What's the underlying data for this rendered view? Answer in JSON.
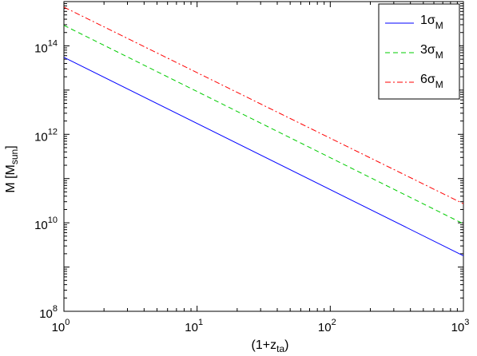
{
  "chart_data": {
    "type": "line",
    "x_scale": "log",
    "y_scale": "log",
    "xlim": [
      1,
      1000
    ],
    "ylim": [
      100000000.0,
      1000000000000000.0
    ],
    "xlabel": {
      "base": "(1+z",
      "sub": "ta",
      "end": ")"
    },
    "ylabel": {
      "base": "M [M",
      "sub": "sun",
      "end": "]"
    },
    "x_ticks": [
      {
        "value": 1,
        "base": "10",
        "exp": "0"
      },
      {
        "value": 10,
        "base": "10",
        "exp": "1"
      },
      {
        "value": 100,
        "base": "10",
        "exp": "2"
      },
      {
        "value": 1000,
        "base": "10",
        "exp": "3"
      }
    ],
    "y_ticks": [
      {
        "value": 100000000.0,
        "base": "10",
        "exp": "8"
      },
      {
        "value": 10000000000.0,
        "base": "10",
        "exp": "10"
      },
      {
        "value": 1000000000000.0,
        "base": "10",
        "exp": "12"
      },
      {
        "value": 100000000000000.0,
        "base": "10",
        "exp": "14"
      }
    ],
    "grid": false,
    "legend_position": "top-right",
    "series": [
      {
        "name": "1σ_M",
        "label_base": "1σ",
        "label_sub": "M",
        "color": "#0000ff",
        "dash": "solid",
        "x": [
          1,
          1000
        ],
        "y": [
          55000000000000.0,
          1800000000.0
        ]
      },
      {
        "name": "3σ_M",
        "label_base": "3σ",
        "label_sub": "M",
        "color": "#00cc00",
        "dash": "dashed",
        "x": [
          1,
          1000
        ],
        "y": [
          290000000000000.0,
          9500000000.0
        ]
      },
      {
        "name": "6σ_M",
        "label_base": "6σ",
        "label_sub": "M",
        "color": "#ff0000",
        "dash": "dashdot",
        "x": [
          1,
          1000
        ],
        "y": [
          750000000000000.0,
          27000000000.0
        ]
      }
    ]
  }
}
